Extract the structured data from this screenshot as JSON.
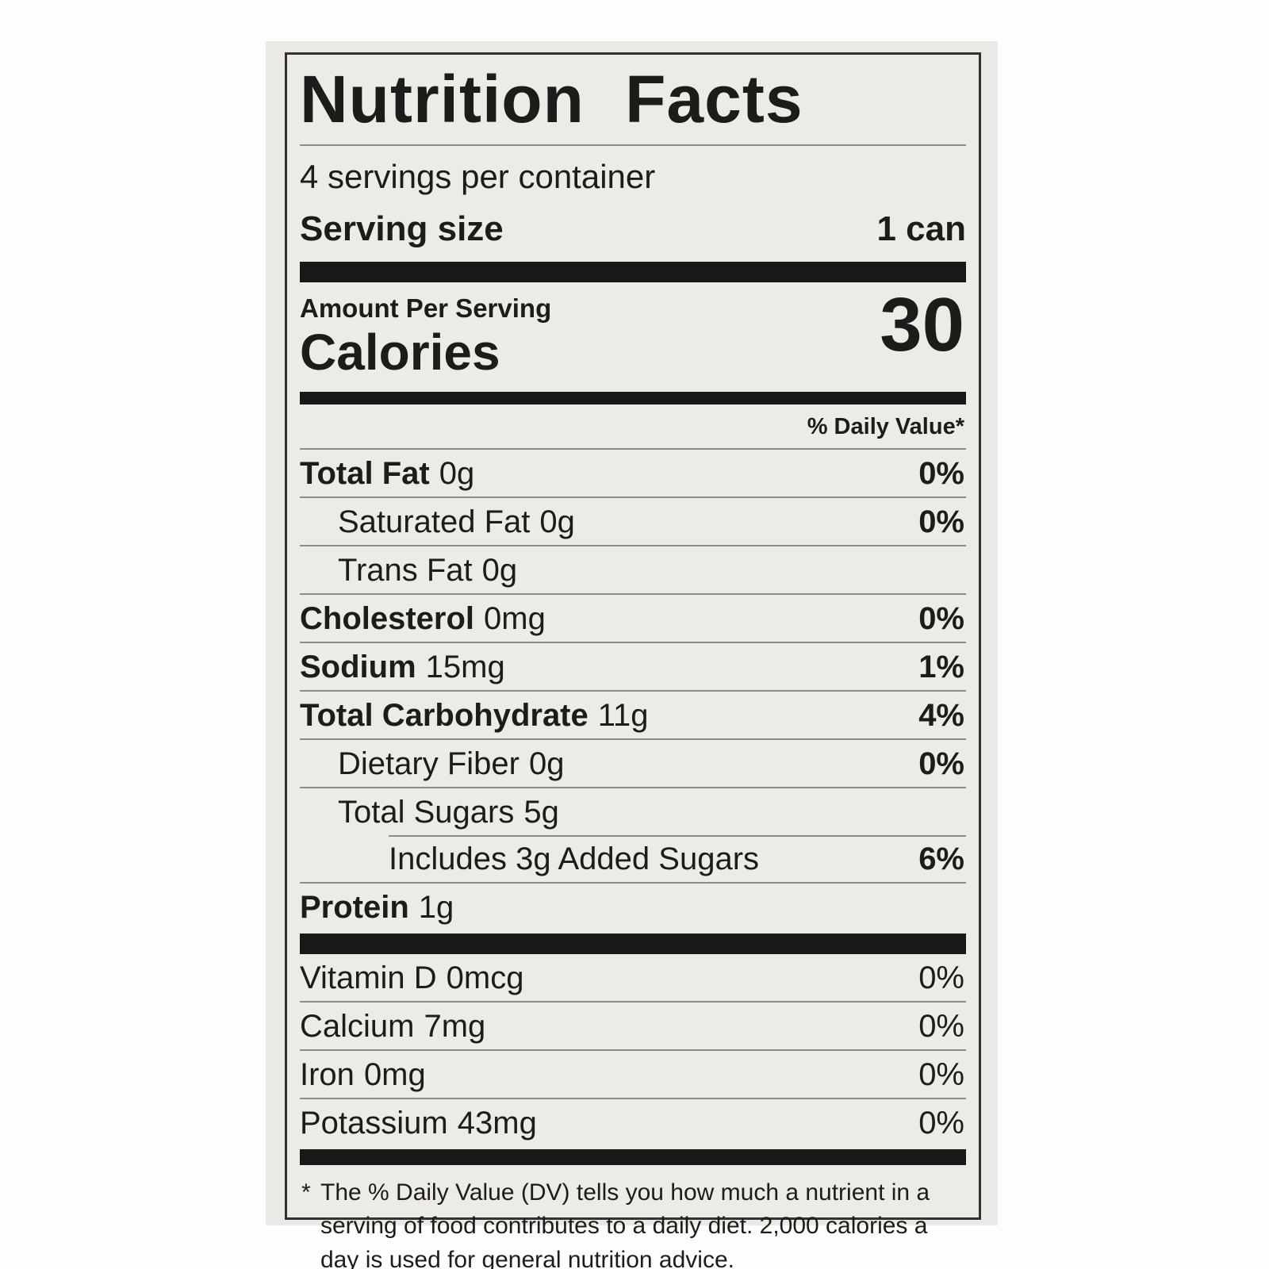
{
  "label": {
    "title": "Nutrition Facts",
    "servings_per_container": "4 servings per container",
    "serving_size_label": "Serving size",
    "serving_size_value": "1 can",
    "amount_per_serving": "Amount Per Serving",
    "calories_label": "Calories",
    "calories_value": "30",
    "daily_value_header": "% Daily Value*",
    "nutrients": [
      {
        "name": "Total Fat",
        "amount": "0g",
        "dv": "0%"
      },
      {
        "name": "Saturated Fat",
        "amount": "0g",
        "dv": "0%"
      },
      {
        "name": "Trans Fat",
        "amount": "0g",
        "dv": ""
      },
      {
        "name": "Cholesterol",
        "amount": "0mg",
        "dv": "0%"
      },
      {
        "name": "Sodium",
        "amount": "15mg",
        "dv": "1%"
      },
      {
        "name": "Total Carbohydrate",
        "amount": "11g",
        "dv": "4%"
      },
      {
        "name": "Dietary Fiber",
        "amount": "0g",
        "dv": "0%"
      },
      {
        "name": "Total Sugars",
        "amount": "5g",
        "dv": ""
      },
      {
        "name": "Includes 3g Added Sugars",
        "amount": "",
        "dv": "6%"
      },
      {
        "name": "Protein",
        "amount": "1g",
        "dv": ""
      }
    ],
    "micronutrients": [
      {
        "name": "Vitamin D",
        "amount": "0mcg",
        "dv": "0%"
      },
      {
        "name": "Calcium",
        "amount": "7mg",
        "dv": "0%"
      },
      {
        "name": "Iron",
        "amount": "0mg",
        "dv": "0%"
      },
      {
        "name": "Potassium",
        "amount": "43mg",
        "dv": "0%"
      }
    ],
    "footnote_marker": "*",
    "footnote": "The % Daily Value (DV) tells you how much a nutrient in a serving of food contributes to a daily diet. 2,000 calories a day is used for general nutrition advice."
  },
  "colors": {
    "text": "#1e1c1a",
    "label_background": "#edebe7",
    "photo_background": "#ebe9e5",
    "page_background": "#fdfdfd",
    "hairline": "#8d8a86",
    "bar": "#1b1917"
  }
}
